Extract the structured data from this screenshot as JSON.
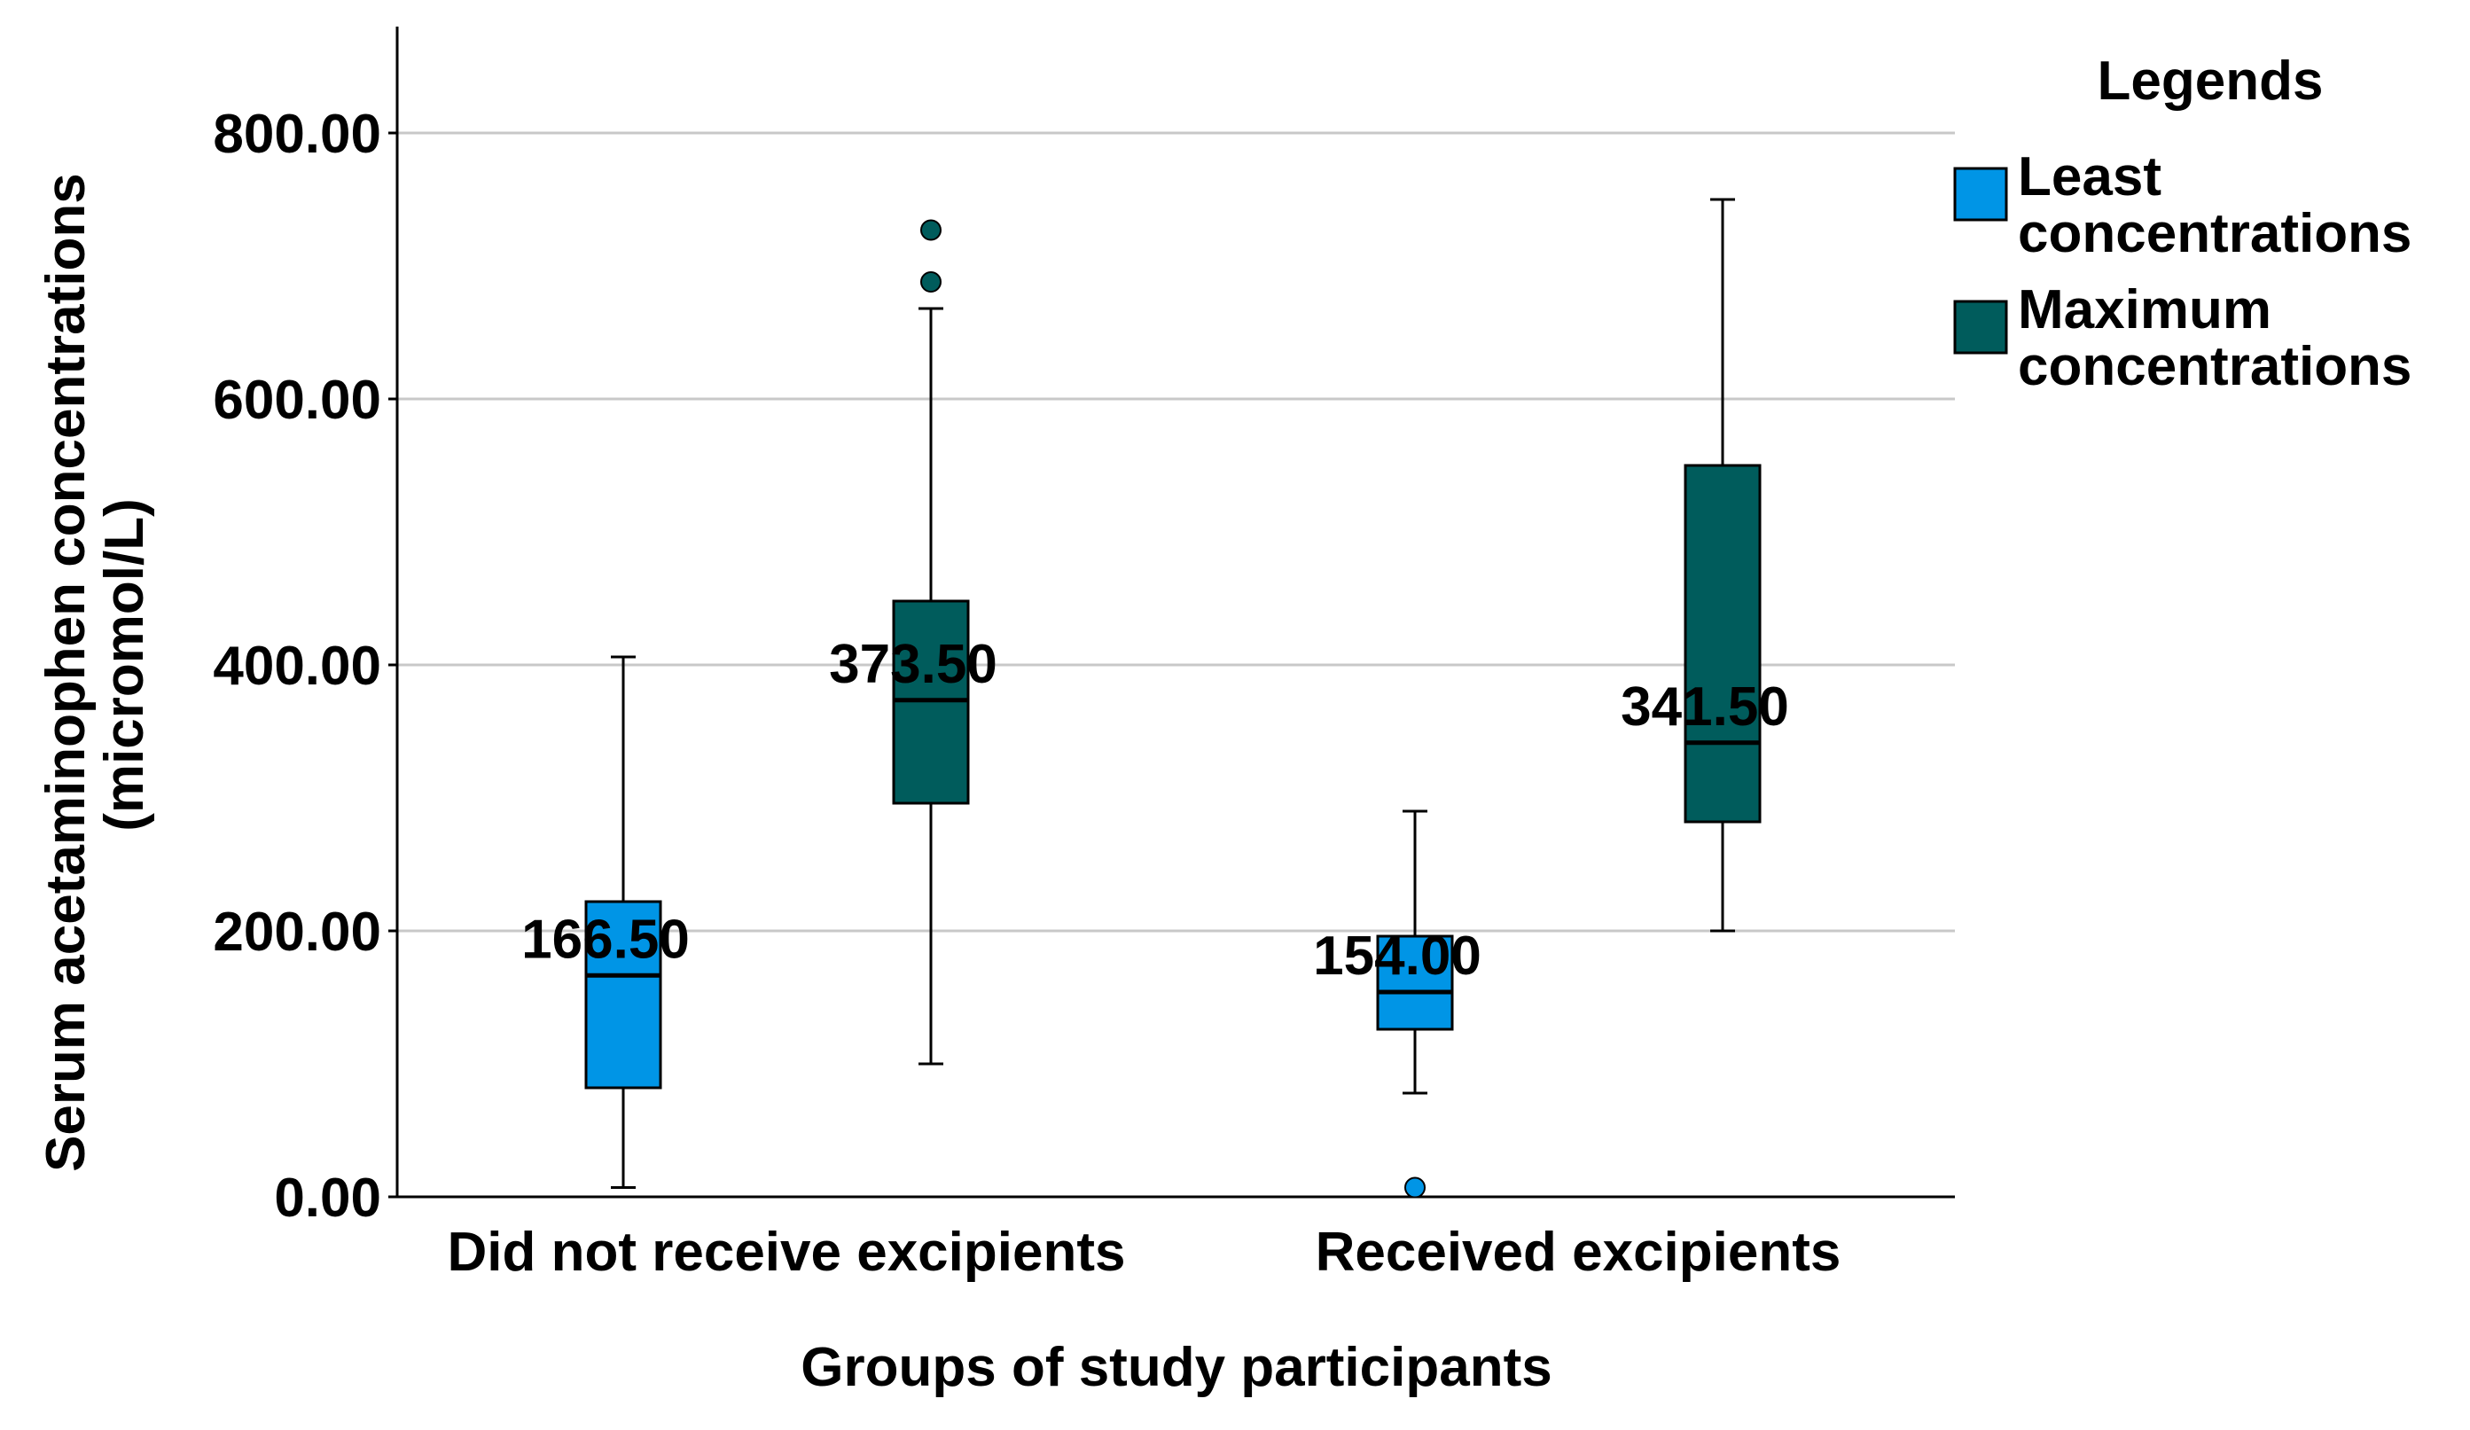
{
  "chart_data": {
    "type": "boxplot",
    "title": "",
    "xlabel": "Groups of study participants",
    "ylabel_line1": "Serum acetaminophen concentrations",
    "ylabel_line2": "(micromol/L)",
    "ylim": [
      0,
      880
    ],
    "yticks": [
      0,
      200,
      400,
      600,
      800
    ],
    "ytick_labels": [
      "0.00",
      "200.00",
      "400.00",
      "600.00",
      "800.00"
    ],
    "grid": true,
    "legend_title": "Legends",
    "legend_position": "top-right",
    "categories": [
      "Did not receive excipients",
      "Received excipients"
    ],
    "series": [
      {
        "name_line1": "Least",
        "name_line2": "concentrations",
        "color": "#0095E6",
        "boxes": [
          {
            "min": 7,
            "q1": 82,
            "median": 166.5,
            "q3": 222,
            "max": 406,
            "outliers": [],
            "median_label": "166.50"
          },
          {
            "min": 78,
            "q1": 126,
            "median": 154,
            "q3": 196,
            "max": 290,
            "outliers": [
              7
            ],
            "median_label": "154.00"
          }
        ]
      },
      {
        "name_line1": "Maximum",
        "name_line2": "concentrations",
        "color": "#005C5C",
        "boxes": [
          {
            "min": 100,
            "q1": 296,
            "median": 373.5,
            "q3": 448,
            "max": 668,
            "outliers": [
              688,
              727
            ],
            "median_label": "373.50"
          },
          {
            "min": 200,
            "q1": 282,
            "median": 341.5,
            "q3": 550,
            "max": 750,
            "outliers": [],
            "median_label": "341.50"
          }
        ]
      }
    ]
  }
}
